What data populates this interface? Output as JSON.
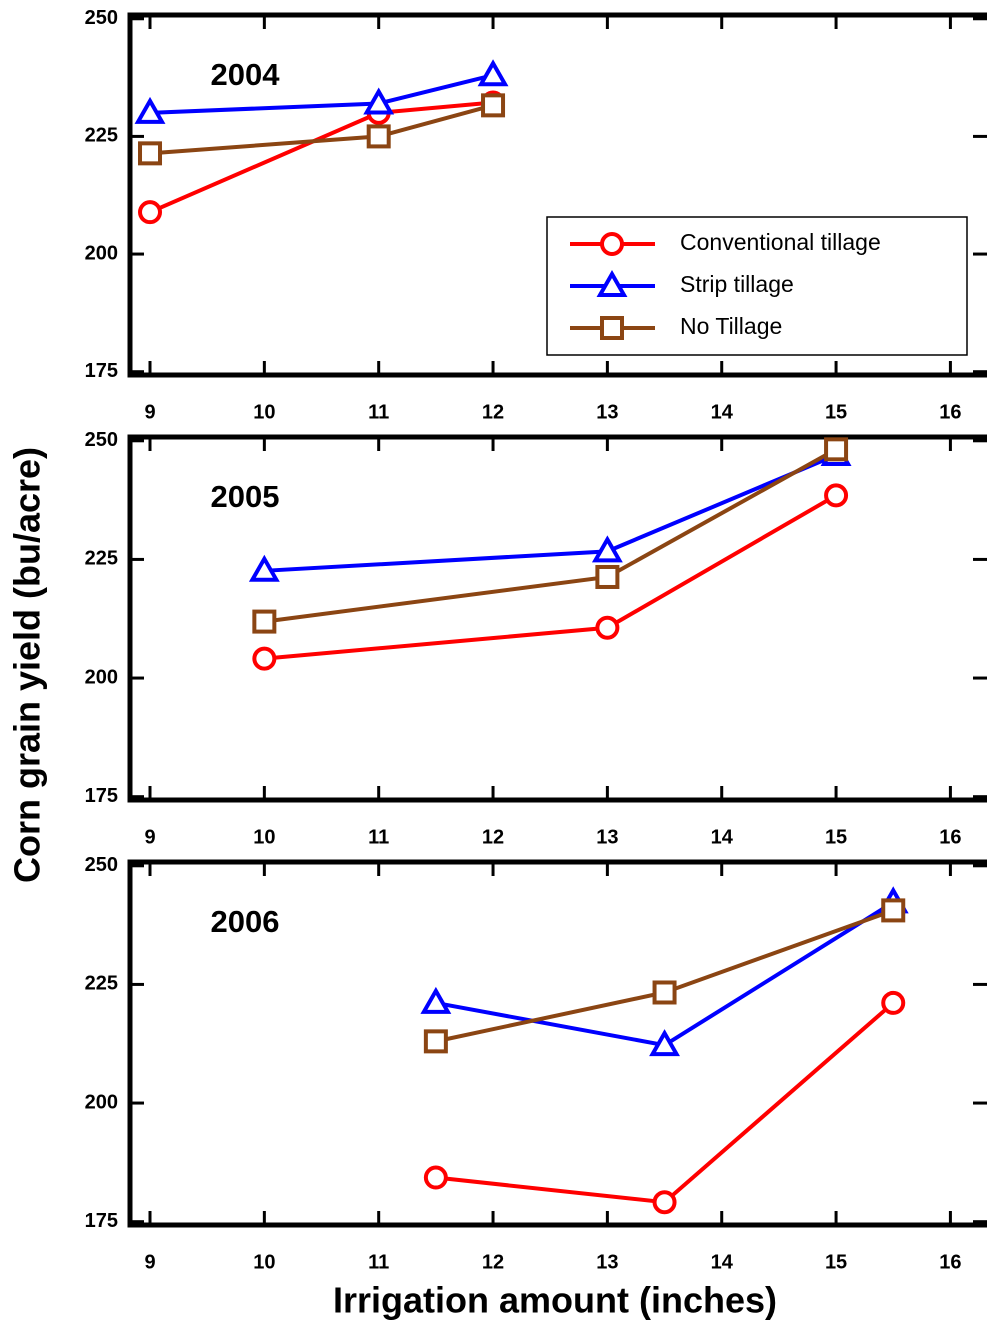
{
  "ylabel": "Corn grain yield (bu/acre)",
  "xlabel": "Irrigation amount (inches)",
  "chart_data": [
    {
      "type": "line",
      "title": "2004",
      "xlim": [
        8.825,
        16.32
      ],
      "xticks": [
        9,
        10,
        11,
        12,
        13,
        14,
        15,
        16
      ],
      "ylim": [
        174.3,
        250.8
      ],
      "yticks": [
        175,
        200,
        225,
        250
      ],
      "legend": "right",
      "series": [
        {
          "name": "Conventional tillage",
          "color": "#ff0000",
          "marker": "circle",
          "x": [
            9,
            11,
            12
          ],
          "values": [
            208.9,
            230,
            232.2
          ]
        },
        {
          "name": "Strip tillage",
          "color": "#0000ff",
          "marker": "triangle",
          "x": [
            9,
            11,
            12
          ],
          "values": [
            230,
            232,
            238
          ]
        },
        {
          "name": "No Tillage",
          "color": "#8b4513",
          "marker": "square",
          "x": [
            9,
            11,
            12
          ],
          "values": [
            221.4,
            225,
            231.6
          ]
        }
      ]
    },
    {
      "type": "line",
      "title": "2005",
      "xlim": [
        8.825,
        16.32
      ],
      "xticks": [
        9,
        10,
        11,
        12,
        13,
        14,
        15,
        16
      ],
      "ylim": [
        174.3,
        250.8
      ],
      "yticks": [
        175,
        200,
        225,
        250
      ],
      "series": [
        {
          "name": "Conventional tillage",
          "color": "#ff0000",
          "marker": "circle",
          "x": [
            10,
            13,
            15
          ],
          "values": [
            204.1,
            210.6,
            238.5
          ]
        },
        {
          "name": "Strip tillage",
          "color": "#0000ff",
          "marker": "triangle",
          "x": [
            10,
            13,
            15
          ],
          "values": [
            222.6,
            226.7,
            247
          ]
        },
        {
          "name": "No Tillage",
          "color": "#8b4513",
          "marker": "square",
          "x": [
            10,
            13,
            15
          ],
          "values": [
            211.9,
            221.3,
            248.2
          ]
        }
      ]
    },
    {
      "type": "line",
      "title": "2006",
      "xlim": [
        8.825,
        16.32
      ],
      "xticks": [
        9,
        10,
        11,
        12,
        13,
        14,
        15,
        16
      ],
      "ylim": [
        174.3,
        250.8
      ],
      "yticks": [
        175,
        200,
        225,
        250
      ],
      "series": [
        {
          "name": "Conventional tillage",
          "color": "#ff0000",
          "marker": "circle",
          "x": [
            11.5,
            13.5,
            15.5
          ],
          "values": [
            184.3,
            179.1,
            221.1
          ]
        },
        {
          "name": "Strip tillage",
          "color": "#0000ff",
          "marker": "triangle",
          "x": [
            11.5,
            13.5,
            15.5
          ],
          "values": [
            221.1,
            212.2,
            242.3
          ]
        },
        {
          "name": "No Tillage",
          "color": "#8b4513",
          "marker": "square",
          "x": [
            11.5,
            13.5,
            15.5
          ],
          "values": [
            213,
            223.3,
            240.6
          ]
        }
      ]
    }
  ]
}
